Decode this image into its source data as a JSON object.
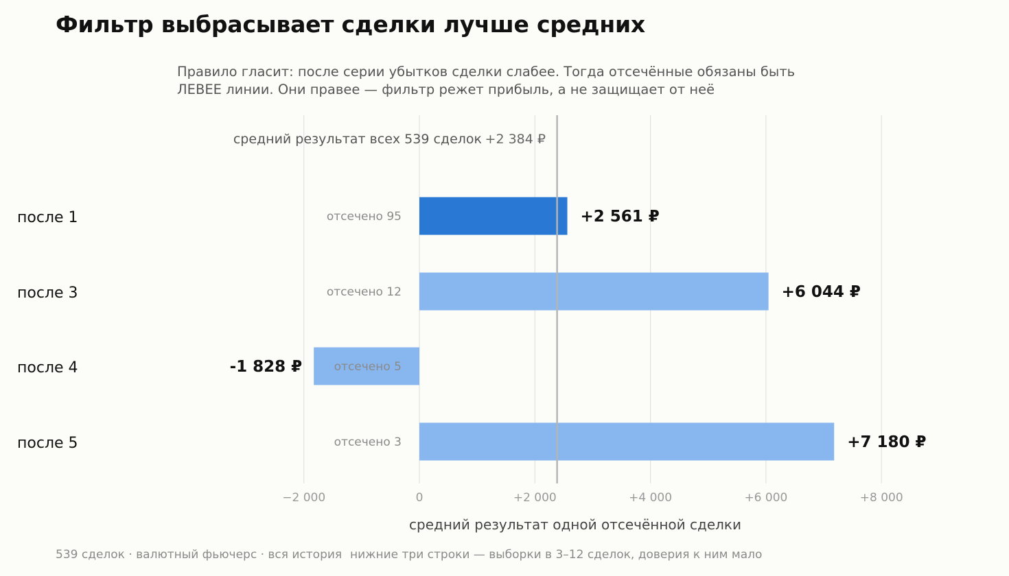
{
  "title": "Фильтр выбрасывает сделки лучше средних",
  "subtitle_lines": [
    "Правило гласит: после серии убытков сделки слабее. Тогда отсечённые обязаны быть",
    "ЛЕВЕЕ линии. Они правее — фильтр режет прибыль, а не защищает от неё"
  ],
  "footer": {
    "left": "539 сделок · валютный фьючерс · вся история",
    "right": "нижние три строки — выборки в 3–12 сделок, доверия к ним мало"
  },
  "chart_data": {
    "type": "bar",
    "orientation": "horizontal",
    "categories": [
      "после 1",
      "после 3",
      "после 4",
      "после 5"
    ],
    "values": [
      2561,
      6044,
      -1828,
      7180
    ],
    "value_labels": [
      "+2 561 ₽",
      "+6 044 ₽",
      "-1 828 ₽",
      "+7 180 ₽"
    ],
    "inner_labels": [
      "отсечено 95",
      "отсечено 12",
      "отсечено 5",
      "отсечено 3"
    ],
    "highlight_index": 0,
    "xlabel": "средний результат одной отсечённой сделки",
    "xlim": [
      -2600,
      8400
    ],
    "xticks": [
      -2000,
      0,
      2000,
      4000,
      6000,
      8000
    ],
    "xtick_labels": [
      "−2 000",
      "0",
      "+2 000",
      "+4 000",
      "+6 000",
      "+8 000"
    ],
    "reference": {
      "value": 2384,
      "label": "средний результат всех 539 сделок",
      "value_label": "+2 384 ₽"
    },
    "grid": true,
    "colors": {
      "highlight": "#2979d4",
      "bar": "#88b6ef",
      "reference": "#b5b5b5",
      "grid": "#e2e2e2"
    }
  }
}
